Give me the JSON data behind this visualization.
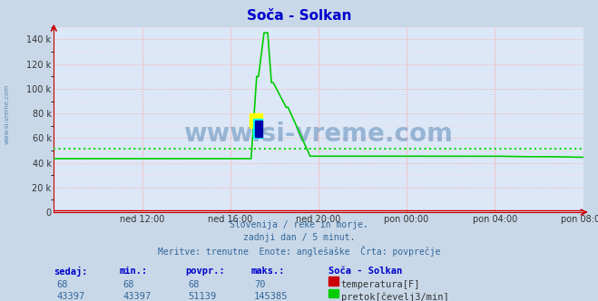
{
  "title": "Soča - Solkan",
  "title_color": "#0000cc",
  "bg_color": "#c8d8e8",
  "plot_bg_color": "#dce8f8",
  "grid_color_major": "#ffaaaa",
  "xlabel_ticks": [
    "ned 12:00",
    "ned 16:00",
    "ned 20:00",
    "pon 00:00",
    "pon 04:00",
    "pon 08:00"
  ],
  "ytick_labels": [
    "0",
    "20 k",
    "40 k",
    "60 k",
    "80 k",
    "100 k",
    "120 k",
    "140 k"
  ],
  "ytick_values": [
    0,
    20000,
    40000,
    60000,
    80000,
    100000,
    120000,
    140000
  ],
  "ymax": 150000,
  "avg_flow": 51139,
  "avg_line_color": "#00dd00",
  "flow_line_color": "#00cc00",
  "temp_line_color": "#cc0000",
  "axis_color": "#cc0000",
  "watermark_text": "www.si-vreme.com",
  "watermark_color": "#4477aa",
  "subtitle_lines": [
    "Slovenija / reke in morje.",
    "zadnji dan / 5 minut.",
    "Meritve: trenutne  Enote: anglešaške  Črta: povprečje"
  ],
  "subtitle_color": "#336699",
  "table_headers": [
    "sedaj:",
    "min.:",
    "povpr.:",
    "maks.:"
  ],
  "table_header_color": "#0000cc",
  "station_name": "Soča - Solkan",
  "row1_values": [
    "68",
    "68",
    "68",
    "70"
  ],
  "row1_label": "temperatura[F]",
  "row1_color": "#cc0000",
  "row2_values": [
    "43397",
    "43397",
    "51139",
    "145385"
  ],
  "row2_label": "pretok[čevelj3/min]",
  "row2_color": "#00cc00",
  "table_value_color": "#336699",
  "n_points": 288,
  "baseline_flow": 43397,
  "peak_flow": 145385
}
